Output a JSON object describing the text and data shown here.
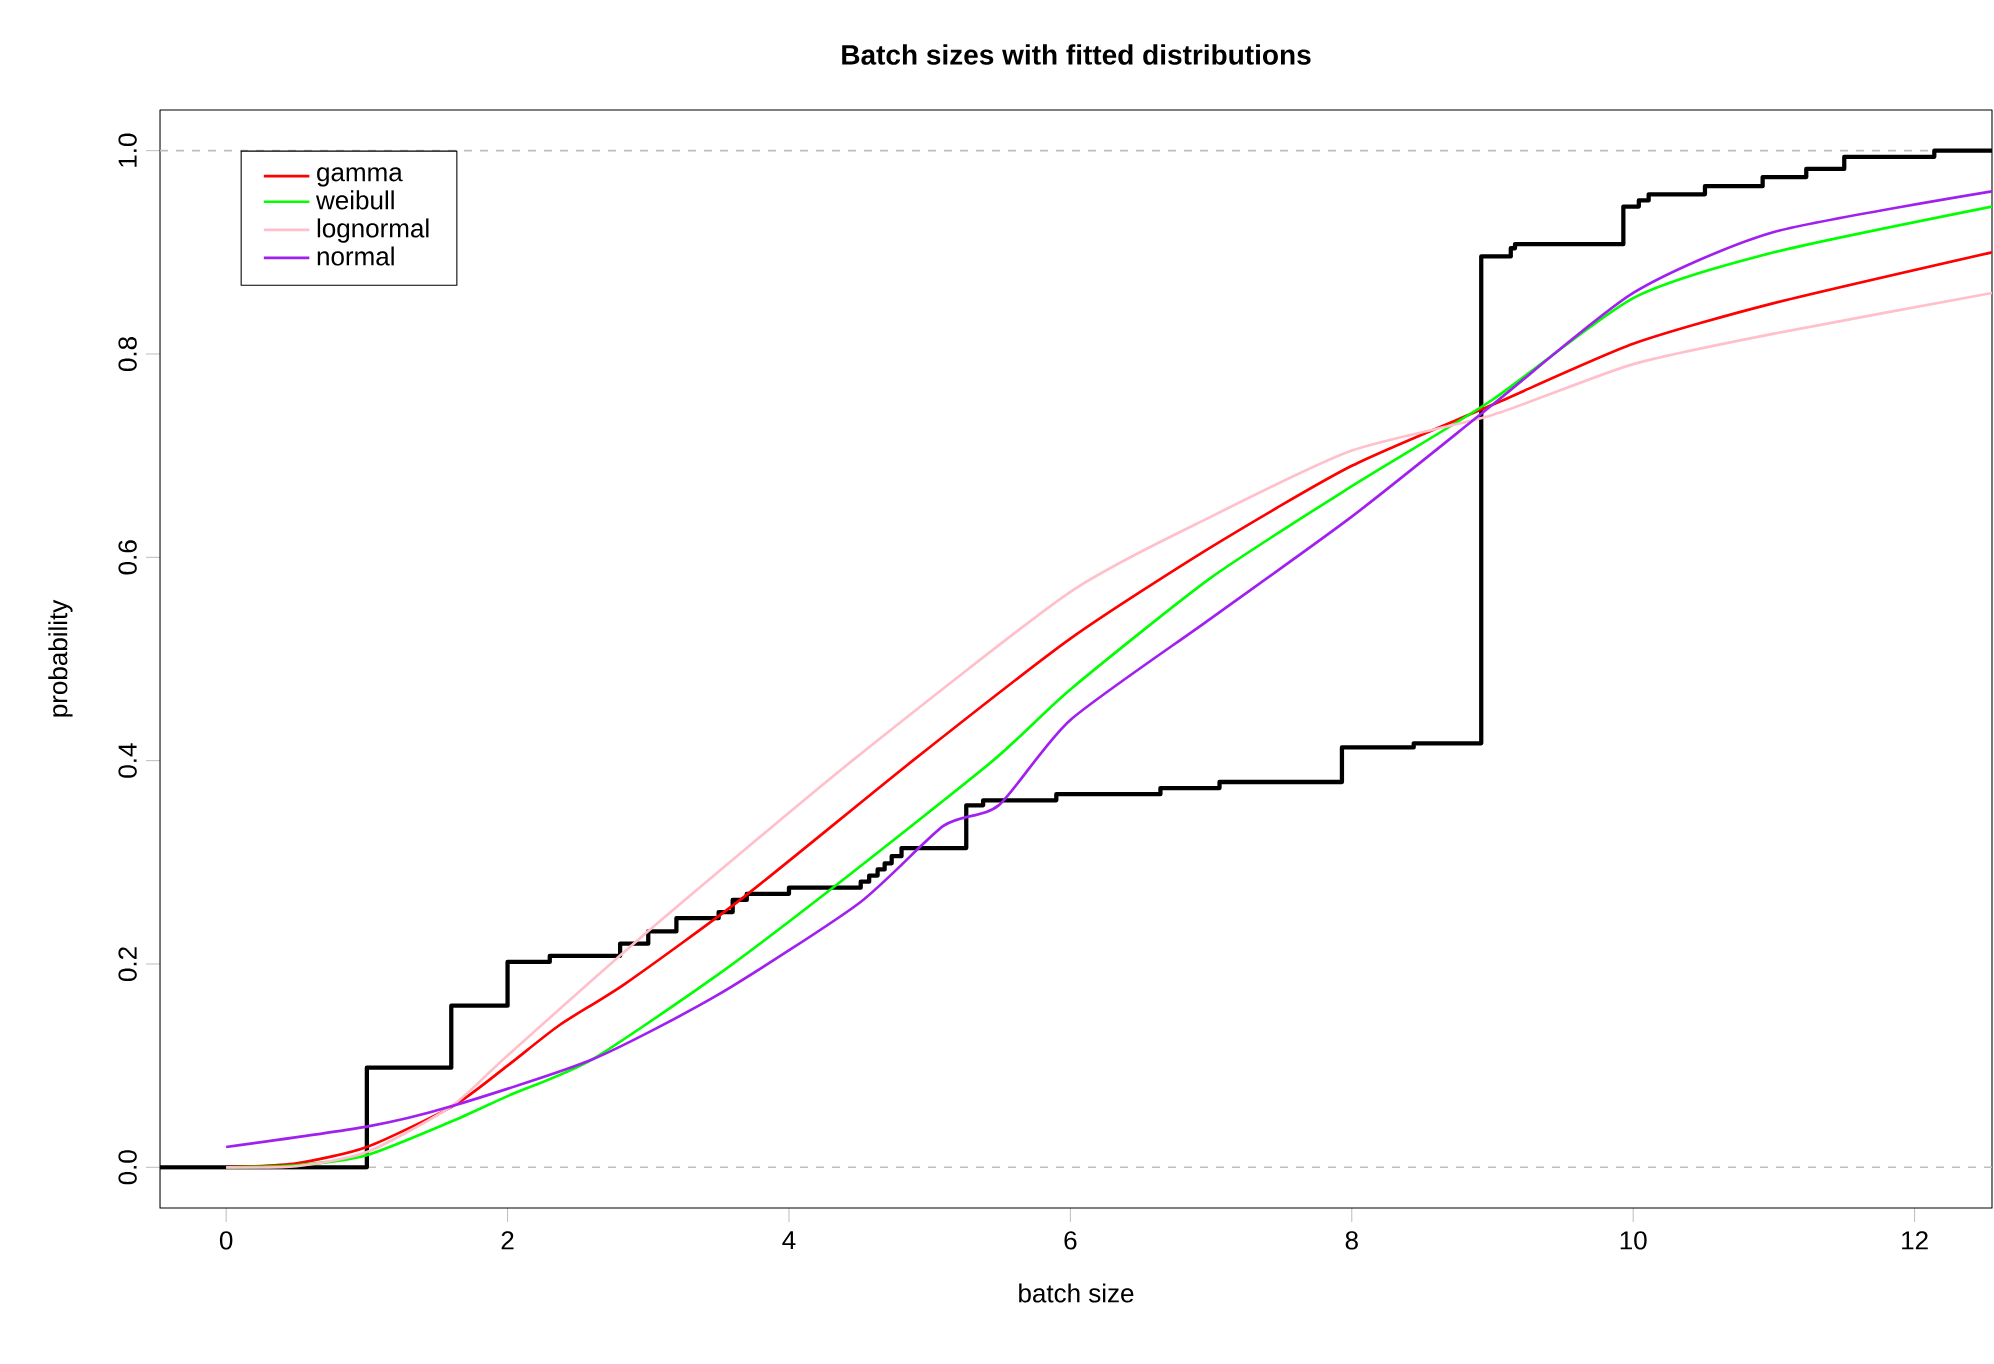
{
  "chart_data": {
    "type": "line",
    "title": "Batch sizes with fitted distributions",
    "xlabel": "batch size",
    "ylabel": "probability",
    "xlim": [
      -0.47,
      12.55
    ],
    "ylim": [
      -0.04,
      1.04
    ],
    "xticks": [
      0,
      2,
      4,
      6,
      8,
      10,
      12
    ],
    "yticks": [
      {
        "value": 0,
        "label": "0.0"
      },
      {
        "value": 0.2,
        "label": "0.2"
      },
      {
        "value": 0.4,
        "label": "0.4"
      },
      {
        "value": 0.6,
        "label": "0.6"
      },
      {
        "value": 0.8,
        "label": "0.8"
      },
      {
        "value": 1,
        "label": "1.0"
      }
    ],
    "legend": "top left",
    "marker": "none",
    "line_style": "solid",
    "ref_lines": [
      {
        "axis": "y",
        "value": 0,
        "color": "#bebebe",
        "line_style": "dashed"
      },
      {
        "axis": "y",
        "value": 1,
        "color": "#bebebe",
        "line_style": "dashed"
      }
    ],
    "series": [
      {
        "type": "step",
        "color": "#000000",
        "x": [
          -0.47,
          1,
          1.6,
          2,
          2.3,
          2.8,
          3.0,
          3.2,
          3.5,
          3.6,
          3.7,
          4.0,
          4.51,
          4.57,
          4.63,
          4.68,
          4.73,
          4.8,
          5.26,
          5.38,
          5.9,
          6.64,
          7.06,
          7.93,
          8.44,
          8.92,
          9.13,
          9.16,
          9.93,
          10.04,
          10.11,
          10.51,
          10.92,
          11.23,
          11.5,
          12.14,
          12.55
        ],
        "values": [
          0,
          0.098,
          0.159,
          0.202,
          0.208,
          0.22,
          0.232,
          0.245,
          0.251,
          0.263,
          0.269,
          0.275,
          0.281,
          0.287,
          0.293,
          0.299,
          0.306,
          0.314,
          0.356,
          0.361,
          0.367,
          0.373,
          0.379,
          0.413,
          0.417,
          0.896,
          0.904,
          0.908,
          0.945,
          0.951,
          0.957,
          0.965,
          0.974,
          0.982,
          0.994,
          1.0,
          1.0
        ]
      },
      {
        "name": "gamma",
        "color": "#ff0000",
        "x": [
          0,
          0.5,
          1,
          1.62,
          2,
          2.37,
          2.84,
          3.69,
          4.88,
          6,
          7,
          8,
          9,
          10,
          11,
          12.55
        ],
        "values": [
          0,
          0.004,
          0.02,
          0.061,
          0.1,
          0.14,
          0.181,
          0.267,
          0.4,
          0.52,
          0.61,
          0.69,
          0.75,
          0.81,
          0.85,
          0.9
        ]
      },
      {
        "name": "weibull",
        "color": "#00ff00",
        "x": [
          0,
          0.5,
          1,
          1.6,
          2,
          2.6,
          3.5,
          4.33,
          5.45,
          6,
          7,
          8,
          9,
          10,
          11,
          12.55
        ],
        "values": [
          0,
          0.002,
          0.012,
          0.045,
          0.07,
          0.106,
          0.19,
          0.277,
          0.4,
          0.47,
          0.58,
          0.67,
          0.755,
          0.855,
          0.9,
          0.945
        ]
      },
      {
        "name": "lognormal",
        "color": "#ffc0cb",
        "x": [
          0,
          0.5,
          1,
          1.6,
          2,
          2.98,
          4.45,
          6,
          7,
          8,
          9,
          10,
          11,
          12.55
        ],
        "values": [
          0,
          0.001,
          0.015,
          0.06,
          0.11,
          0.23,
          0.4,
          0.566,
          0.64,
          0.705,
          0.74,
          0.79,
          0.82,
          0.86
        ]
      },
      {
        "name": "normal",
        "color": "#a020f0",
        "x": [
          0,
          1,
          1.6,
          2.6,
          3.5,
          4.5,
          5.1,
          5.49,
          6,
          7,
          8,
          9,
          10,
          11,
          12.55
        ],
        "values": [
          0.02,
          0.04,
          0.06,
          0.106,
          0.17,
          0.26,
          0.336,
          0.356,
          0.44,
          0.54,
          0.64,
          0.75,
          0.86,
          0.92,
          0.96
        ]
      }
    ]
  }
}
